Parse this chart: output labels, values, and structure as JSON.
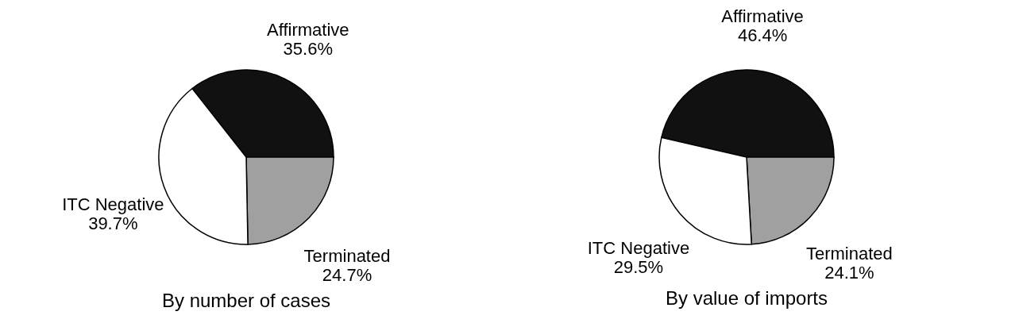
{
  "chart_data": [
    {
      "type": "pie",
      "title": "By number of cases",
      "categories": [
        "Affirmative",
        "Terminated",
        "ITC Negative"
      ],
      "values": [
        35.6,
        24.7,
        39.7
      ],
      "value_labels": [
        "35.6%",
        "24.7%",
        "39.7%"
      ],
      "colors": [
        "#111111",
        "#a0a0a0",
        "#ffffff"
      ],
      "legend": false
    },
    {
      "type": "pie",
      "title": "By value of imports",
      "categories": [
        "Affirmative",
        "Terminated",
        "ITC Negative"
      ],
      "values": [
        46.4,
        24.1,
        29.5
      ],
      "value_labels": [
        "46.4%",
        "24.1%",
        "29.5%"
      ],
      "colors": [
        "#111111",
        "#a0a0a0",
        "#ffffff"
      ],
      "legend": false
    }
  ]
}
